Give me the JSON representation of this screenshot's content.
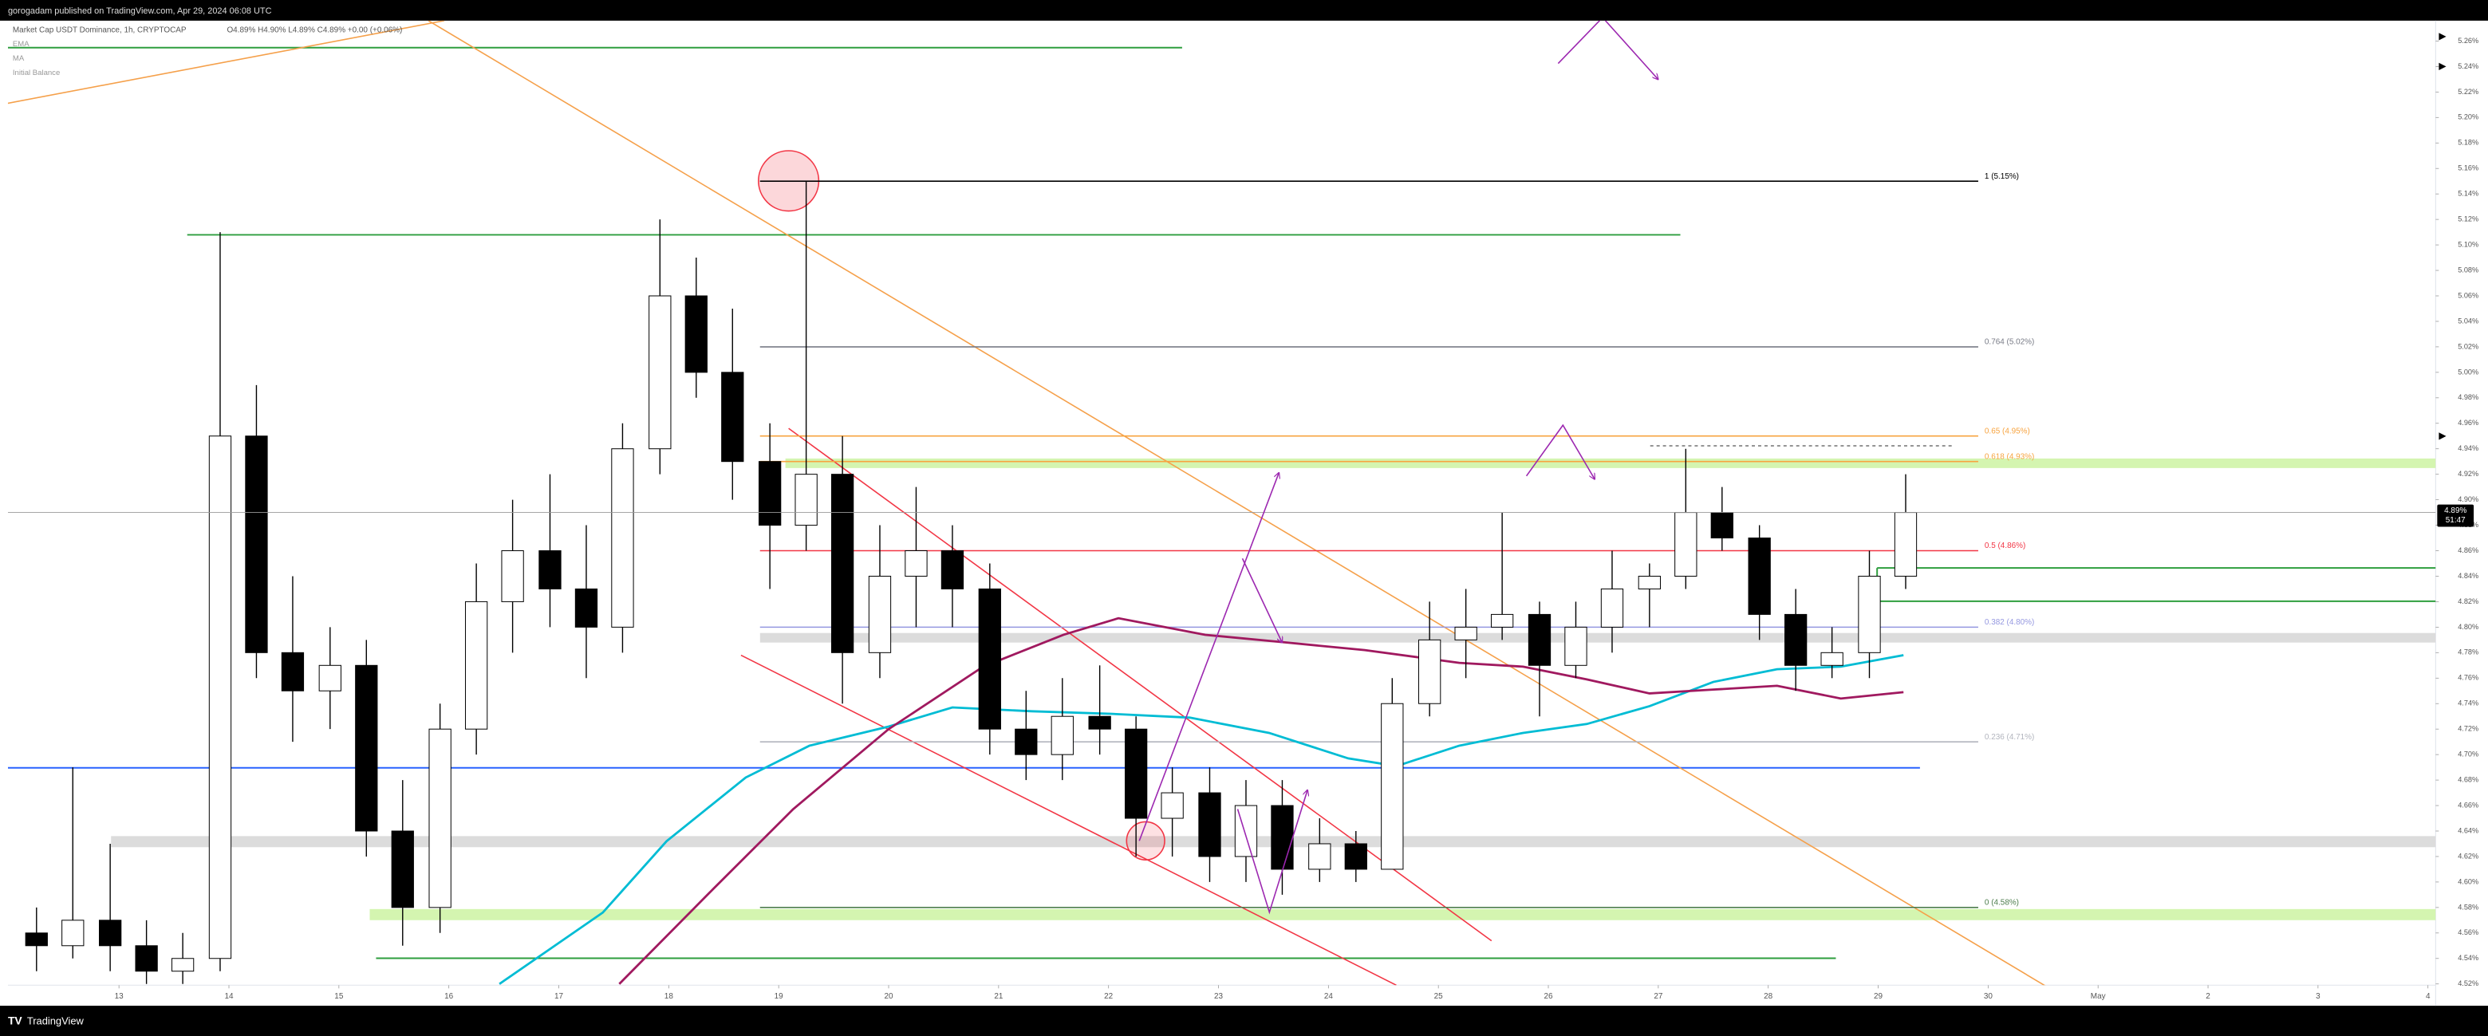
{
  "header": {
    "text": "gorogadam published on TradingView.com, Apr 29, 2024 06:08 UTC"
  },
  "footer": {
    "brand": "TradingView"
  },
  "chart_data": {
    "type": "candlestick",
    "title": "Market Cap USDT Dominance, 1h, CRYPTOCAP",
    "ohlc_readout": "O4.89% H4.90% L4.89% C4.89% +0.00 (+0.06%)",
    "legend": [
      "EMA",
      "MA",
      "Initial Balance"
    ],
    "price_label": "4.89%",
    "countdown": "51:47",
    "up_color": "#ffffff",
    "down_color": "#000000",
    "wick_color": "#000000",
    "grid": false,
    "xlim": [
      11.99,
      34.07
    ],
    "ylim": [
      4.519,
      5.276
    ],
    "xticks": [
      13,
      14,
      15,
      16,
      17,
      18,
      19,
      20,
      21,
      22,
      23,
      24,
      25,
      26,
      27,
      28,
      29,
      30,
      {
        "value": 31,
        "label": "May"
      },
      {
        "value": 32,
        "label": "2"
      },
      {
        "value": 33,
        "label": "3"
      },
      {
        "value": 34,
        "label": "4"
      }
    ],
    "yticks": [
      {
        "value": 5.26,
        "label": "5.26%"
      },
      {
        "value": 5.24,
        "label": "5.24%"
      },
      {
        "value": 5.22,
        "label": "5.22%"
      },
      {
        "value": 5.2,
        "label": "5.20%"
      },
      {
        "value": 5.18,
        "label": "5.18%"
      },
      {
        "value": 5.16,
        "label": "5.16%"
      },
      {
        "value": 5.14,
        "label": "5.14%"
      },
      {
        "value": 5.12,
        "label": "5.12%"
      },
      {
        "value": 5.1,
        "label": "5.10%"
      },
      {
        "value": 5.08,
        "label": "5.08%"
      },
      {
        "value": 5.06,
        "label": "5.06%"
      },
      {
        "value": 5.04,
        "label": "5.04%"
      },
      {
        "value": 5.02,
        "label": "5.02%"
      },
      {
        "value": 5.0,
        "label": "5.00%"
      },
      {
        "value": 4.98,
        "label": "4.98%"
      },
      {
        "value": 4.96,
        "label": "4.96%"
      },
      {
        "value": 4.94,
        "label": "4.94%"
      },
      {
        "value": 4.92,
        "label": "4.92%"
      },
      {
        "value": 4.9,
        "label": "4.90%"
      },
      {
        "value": 4.88,
        "label": "4.88%"
      },
      {
        "value": 4.86,
        "label": "4.86%"
      },
      {
        "value": 4.84,
        "label": "4.84%"
      },
      {
        "value": 4.82,
        "label": "4.82%"
      },
      {
        "value": 4.8,
        "label": "4.80%"
      },
      {
        "value": 4.78,
        "label": "4.78%"
      },
      {
        "value": 4.76,
        "label": "4.76%"
      },
      {
        "value": 4.74,
        "label": "4.74%"
      },
      {
        "value": 4.72,
        "label": "4.72%"
      },
      {
        "value": 4.7,
        "label": "4.70%"
      },
      {
        "value": 4.68,
        "label": "4.68%"
      },
      {
        "value": 4.66,
        "label": "4.66%"
      },
      {
        "value": 4.64,
        "label": "4.64%"
      },
      {
        "value": 4.62,
        "label": "4.62%"
      },
      {
        "value": 4.6,
        "label": "4.60%"
      },
      {
        "value": 4.58,
        "label": "4.58%"
      },
      {
        "value": 4.56,
        "label": "4.56%"
      },
      {
        "value": 4.54,
        "label": "4.54%"
      },
      {
        "value": 4.52,
        "label": "4.52%"
      }
    ],
    "x": [
      12.25,
      12.58,
      12.92,
      13.25,
      13.58,
      13.92,
      14.25,
      14.58,
      14.92,
      15.25,
      15.58,
      15.92,
      16.25,
      16.58,
      16.92,
      17.25,
      17.58,
      17.92,
      18.25,
      18.58,
      18.92,
      19.25,
      19.58,
      19.92,
      20.25,
      20.58,
      20.92,
      21.25,
      21.58,
      21.92,
      22.25,
      22.58,
      22.92,
      23.25,
      23.58,
      23.92,
      24.25,
      24.58,
      24.92,
      25.25,
      25.58,
      25.92,
      26.25,
      26.58,
      26.92,
      27.25,
      27.58,
      27.92,
      28.25,
      28.58,
      28.92,
      29.25
    ],
    "open": [
      4.56,
      4.55,
      4.57,
      4.55,
      4.53,
      4.54,
      4.95,
      4.78,
      4.75,
      4.77,
      4.64,
      4.58,
      4.72,
      4.82,
      4.86,
      4.83,
      4.8,
      4.94,
      5.06,
      5.0,
      4.93,
      4.88,
      4.92,
      4.78,
      4.84,
      4.86,
      4.83,
      4.72,
      4.7,
      4.73,
      4.72,
      4.65,
      4.67,
      4.62,
      4.66,
      4.61,
      4.63,
      4.61,
      4.74,
      4.79,
      4.8,
      4.81,
      4.77,
      4.8,
      4.83,
      4.84,
      4.89,
      4.87,
      4.81,
      4.77,
      4.78,
      4.84
    ],
    "high": [
      4.58,
      4.69,
      4.63,
      4.57,
      4.56,
      5.11,
      4.99,
      4.84,
      4.8,
      4.79,
      4.68,
      4.74,
      4.85,
      4.9,
      4.92,
      4.88,
      4.96,
      5.12,
      5.09,
      5.05,
      4.96,
      5.15,
      4.95,
      4.88,
      4.91,
      4.88,
      4.85,
      4.75,
      4.76,
      4.77,
      4.73,
      4.69,
      4.69,
      4.68,
      4.68,
      4.65,
      4.64,
      4.76,
      4.82,
      4.83,
      4.89,
      4.82,
      4.82,
      4.86,
      4.85,
      4.94,
      4.91,
      4.88,
      4.83,
      4.8,
      4.86,
      4.92
    ],
    "low": [
      4.53,
      4.54,
      4.53,
      4.52,
      4.52,
      4.53,
      4.76,
      4.71,
      4.72,
      4.62,
      4.55,
      4.56,
      4.7,
      4.78,
      4.8,
      4.76,
      4.78,
      4.92,
      4.98,
      4.9,
      4.83,
      4.86,
      4.74,
      4.76,
      4.8,
      4.8,
      4.7,
      4.68,
      4.68,
      4.7,
      4.62,
      4.62,
      4.6,
      4.6,
      4.59,
      4.6,
      4.6,
      4.61,
      4.73,
      4.76,
      4.79,
      4.73,
      4.76,
      4.78,
      4.8,
      4.83,
      4.86,
      4.79,
      4.75,
      4.76,
      4.76,
      4.83
    ],
    "close": [
      4.55,
      4.57,
      4.55,
      4.53,
      4.54,
      4.95,
      4.78,
      4.75,
      4.77,
      4.64,
      4.58,
      4.72,
      4.82,
      4.86,
      4.83,
      4.8,
      4.94,
      5.06,
      5.0,
      4.93,
      4.88,
      4.92,
      4.78,
      4.84,
      4.86,
      4.83,
      4.72,
      4.7,
      4.73,
      4.72,
      4.65,
      4.67,
      4.62,
      4.66,
      4.61,
      4.63,
      4.61,
      4.74,
      4.79,
      4.8,
      4.81,
      4.77,
      4.8,
      4.83,
      4.84,
      4.89,
      4.87,
      4.81,
      4.77,
      4.78,
      4.84,
      4.89
    ],
    "overlays": [
      {
        "type": "line",
        "color": "#00bcd4",
        "x": [
          16.46,
          17.4,
          17.98,
          18.7,
          19.28,
          20.0,
          20.58,
          21.3,
          22.02,
          22.74,
          23.46,
          24.18,
          24.62,
          25.19,
          25.77,
          26.35,
          26.92,
          27.5,
          28.08,
          28.66,
          29.23
        ],
        "values": [
          4.52,
          4.576,
          4.632,
          4.682,
          4.707,
          4.722,
          4.737,
          4.734,
          4.732,
          4.729,
          4.717,
          4.697,
          4.691,
          4.707,
          4.717,
          4.724,
          4.738,
          4.757,
          4.767,
          4.769,
          4.778
        ]
      },
      {
        "type": "line",
        "color": "#a0195f",
        "x": [
          17.55,
          18.41,
          19.13,
          20.0,
          20.86,
          21.59,
          22.09,
          22.88,
          23.61,
          24.33,
          25.19,
          25.77,
          26.35,
          26.92,
          27.5,
          28.08,
          28.66,
          29.23
        ],
        "values": [
          4.52,
          4.595,
          4.657,
          4.72,
          4.769,
          4.794,
          4.807,
          4.794,
          4.788,
          4.782,
          4.772,
          4.769,
          4.759,
          4.748,
          4.751,
          4.754,
          4.744,
          4.749
        ]
      }
    ],
    "fib": {
      "x_range": [
        18.83,
        29.91
      ],
      "levels": [
        {
          "label": "1 (5.15%)",
          "value": 5.15,
          "color": "#000000"
        },
        {
          "label": "0.764 (5.02%)",
          "value": 5.02,
          "color": "#787b86"
        },
        {
          "label": "0.65 (4.95%)",
          "value": 4.95,
          "color": "#f7a440"
        },
        {
          "label": "0.618 (4.93%)",
          "value": 4.93,
          "color": "#f7a440"
        },
        {
          "label": "0.5 (4.86%)",
          "value": 4.86,
          "color": "#f23645"
        },
        {
          "label": "0.382 (4.80%)",
          "value": 4.8,
          "color": "#9598e0"
        },
        {
          "label": "0.236 (4.71%)",
          "value": 4.71,
          "color": "#b2b5be"
        },
        {
          "label": "0 (4.58%)",
          "value": 4.58,
          "color": "#4d7d4d"
        }
      ]
    }
  }
}
